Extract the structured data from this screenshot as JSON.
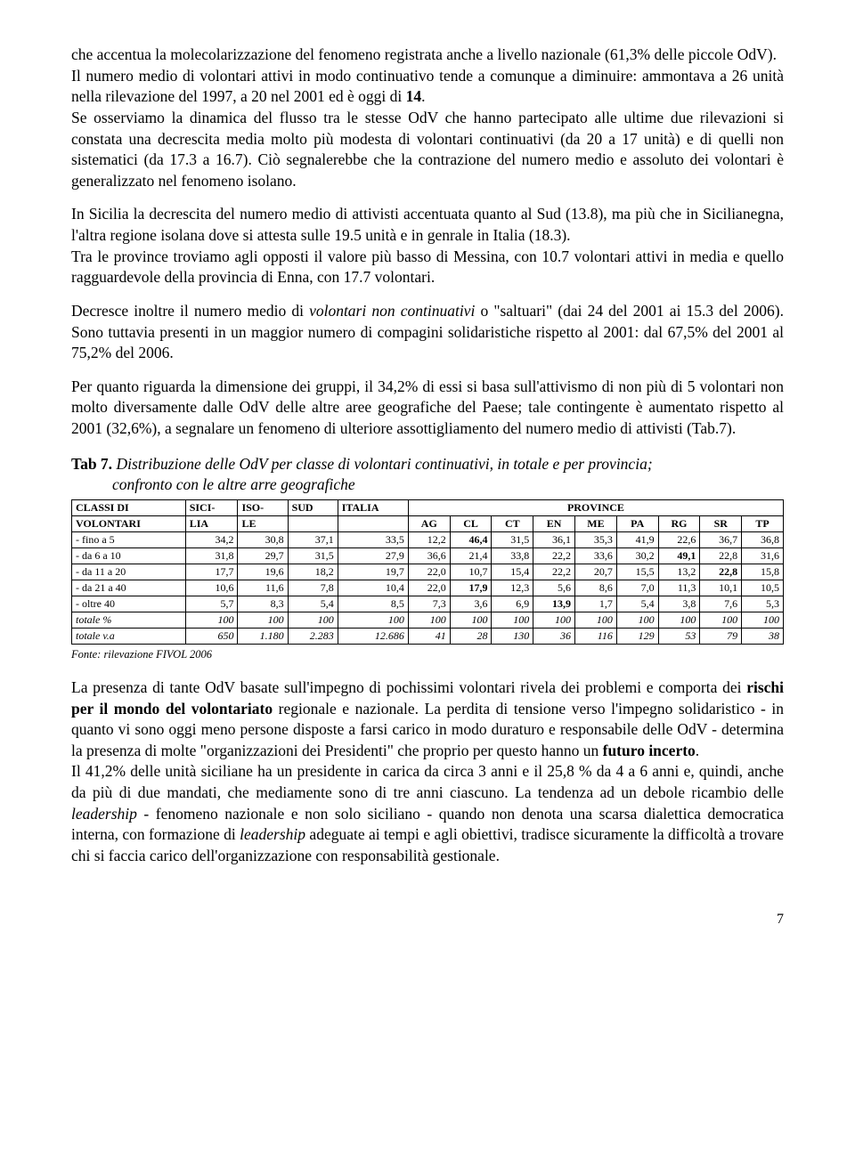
{
  "p1a": "che accentua la molecolarizzazione del fenomeno registrata anche a livello nazionale (61,3% delle piccole OdV).",
  "p1b": "Il numero medio di volontari attivi in modo continuativo tende a comunque a diminuire: ammontava a 26 unità nella rilevazione del 1997, a 20 nel 2001 ed è oggi di ",
  "p1b_bold": "14",
  "p1b_after": ".",
  "p1c": "Se osserviamo la dinamica del flusso tra le stesse OdV che hanno partecipato alle ultime due rilevazioni si constata una decrescita media molto più modesta di volontari continuativi (da 20 a 17 unità) e di quelli non sistematici (da 17.3 a 16.7). Ciò segnalerebbe che la contrazione del numero medio e assoluto dei volontari è generalizzato nel fenomeno isolano.",
  "p2a": "In Sicilia la decrescita del numero medio di attivisti accentuata quanto al Sud (13.8), ma più che in Sicilianegna, l'altra regione isolana dove si attesta sulle 19.5 unità e in genrale in Italia (18.3).",
  "p2b": "Tra le province troviamo agli opposti il valore più basso di Messina, con 10.7 volontari attivi in media e quello ragguardevole della provincia di Enna, con 17.7 volontari.",
  "p3a": "Decresce inoltre il numero medio di ",
  "p3a_it": "volontari non continuativi",
  "p3a_after": " o \"saltuari\" (dai 24 del 2001 ai 15.3 del 2006). Sono tuttavia presenti in un maggior numero di compagini solidaristiche rispetto al 2001: dal 67,5% del 2001 al 75,2% del 2006.",
  "p4": "Per quanto riguarda la dimensione dei gruppi, il 34,2% di essi si basa sull'attivismo di non più di 5 volontari non molto diversamente dalle OdV delle altre aree geografiche del Paese; tale contingente è aumentato rispetto al 2001 (32,6%), a segnalare un fenomeno di ulteriore assottigliamento del numero medio di attivisti (Tab.7).",
  "tab": {
    "lead": "Tab 7.",
    "title_it1": " Distribuzione delle OdV per classe di volontari continuativi, in totale e per provincia;",
    "title_it2": "confronto con le altre arre geografiche",
    "head_l1": "CLASSI DI",
    "head_l2": "VOLONTARI",
    "cols_top": [
      "SICI-",
      "ISO-",
      "SUD",
      "ITALIA"
    ],
    "cols_bot": [
      "LIA",
      "LE",
      "",
      ""
    ],
    "prov_head": "PROVINCE",
    "prov_cols": [
      "AG",
      "CL",
      "CT",
      "EN",
      "ME",
      "PA",
      "RG",
      "SR",
      "TP"
    ],
    "rows": [
      {
        "label": "- fino a 5",
        "v": [
          "34,2",
          "30,8",
          "37,1",
          "33,5",
          "12,2",
          "46,4",
          "31,5",
          "36,1",
          "35,3",
          "41,9",
          "22,6",
          "36,7",
          "36,8"
        ],
        "bold": [
          5
        ]
      },
      {
        "label": "- da 6 a 10",
        "v": [
          "31,8",
          "29,7",
          "31,5",
          "27,9",
          "36,6",
          "21,4",
          "33,8",
          "22,2",
          "33,6",
          "30,2",
          "49,1",
          "22,8",
          "31,6"
        ],
        "bold": [
          10
        ]
      },
      {
        "label": "- da 11 a 20",
        "v": [
          "17,7",
          "19,6",
          "18,2",
          "19,7",
          "22,0",
          "10,7",
          "15,4",
          "22,2",
          "20,7",
          "15,5",
          "13,2",
          "22,8",
          "15,8"
        ],
        "bold": [
          11
        ]
      },
      {
        "label": "- da 21 a 40",
        "v": [
          "10,6",
          "11,6",
          "7,8",
          "10,4",
          "22,0",
          "17,9",
          "12,3",
          "5,6",
          "8,6",
          "7,0",
          "11,3",
          "10,1",
          "10,5"
        ],
        "bold": [
          5
        ]
      },
      {
        "label": "- oltre 40",
        "v": [
          "5,7",
          "8,3",
          "5,4",
          "8,5",
          "7,3",
          "3,6",
          "6,9",
          "13,9",
          "1,7",
          "5,4",
          "3,8",
          "7,6",
          "5,3"
        ],
        "bold": [
          7
        ]
      }
    ],
    "totals": [
      {
        "label": "totale %",
        "v": [
          "100",
          "100",
          "100",
          "100",
          "100",
          "100",
          "100",
          "100",
          "100",
          "100",
          "100",
          "100",
          "100"
        ]
      },
      {
        "label": "totale v.a",
        "v": [
          "650",
          "1.180",
          "2.283",
          "12.686",
          "41",
          "28",
          "130",
          "36",
          "116",
          "129",
          "53",
          "79",
          "38"
        ]
      }
    ],
    "source": "Fonte: rilevazione FIVOL 2006"
  },
  "p5a": "La presenza di tante OdV basate sull'impegno di pochissimi volontari rivela dei problemi e comporta dei ",
  "p5a_b": "rischi per il mondo del volontariato",
  "p5a_after": " regionale e nazionale. La perdita di tensione verso l'impegno solidaristico - in quanto vi sono oggi meno persone disposte a farsi carico in modo duraturo e responsabile delle OdV - determina la presenza di molte \"organizzazioni dei Presidenti\" che proprio per questo hanno un ",
  "p5a_b2": "futuro incerto",
  "p5a_end": ".",
  "p5b_a": "Il 41,2% delle unità siciliane ha un presidente in carica da circa 3 anni e il 25,8 % da 4 a 6 anni e, quindi, anche da più di due mandati, che mediamente sono di tre anni ciascuno. La tendenza ad un debole ricambio delle ",
  "p5b_it1": "leadership",
  "p5b_b": " - fenomeno nazionale e non solo siciliano - quando non denota una scarsa dialettica democratica interna, con formazione di ",
  "p5b_it2": "leadership",
  "p5b_c": " adeguate ai tempi e agli obiettivi, tradisce sicuramente la difficoltà a trovare chi si faccia carico dell'organizzazione con responsabilità gestionale.",
  "page_num": "7"
}
